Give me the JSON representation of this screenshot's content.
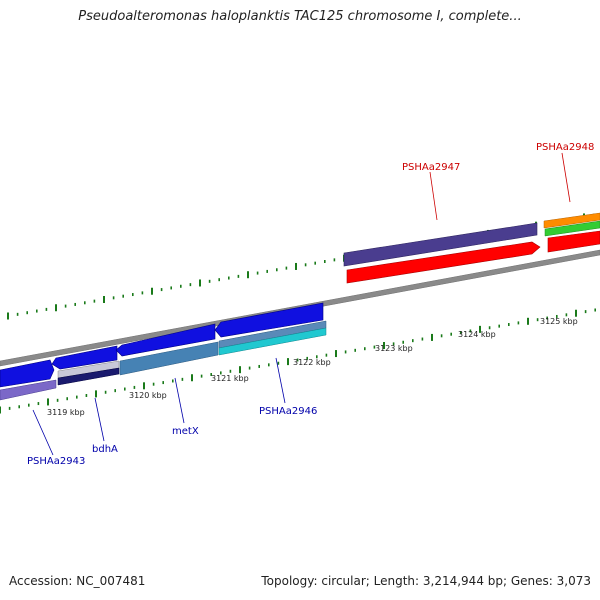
{
  "header": {
    "title": "Pseudoalteromonas haloplanktis TAC125 chromosome I, complete..."
  },
  "footer": {
    "accession": "Accession: NC_007481",
    "summary": "Topology: circular; Length: 3,214,944 bp; Genes: 3,073"
  },
  "scale": {
    "ticks": [
      "3119 kbp",
      "3120 kbp",
      "3121 kbp",
      "3122 kbp",
      "3123 kbp",
      "3124 kbp",
      "3125 kbp"
    ]
  },
  "genes": {
    "forward": [
      {
        "label": "PSHAa2947",
        "color": "#cc0000"
      },
      {
        "label": "PSHAa2948",
        "color": "#cc0000"
      }
    ],
    "reverse": [
      {
        "label": "PSHAa2943",
        "color": "#0000aa"
      },
      {
        "label": "bdhA",
        "color": "#0000aa"
      },
      {
        "label": "metX",
        "color": "#0000aa"
      },
      {
        "label": "PSHAa2946",
        "color": "#0000aa"
      }
    ]
  },
  "colors": {
    "backbone": "#8a8a8a",
    "tick": "#1a7a1a",
    "forward_cds": "#ff0000",
    "reverse_cds": "#1010e0",
    "track_purple": "#4a3d8f",
    "track_light_purple": "#7b68c8",
    "track_steelblue": "#4682b4",
    "track_cyan": "#20c8d0",
    "track_orange": "#ff8c00",
    "track_green": "#33cc33"
  }
}
